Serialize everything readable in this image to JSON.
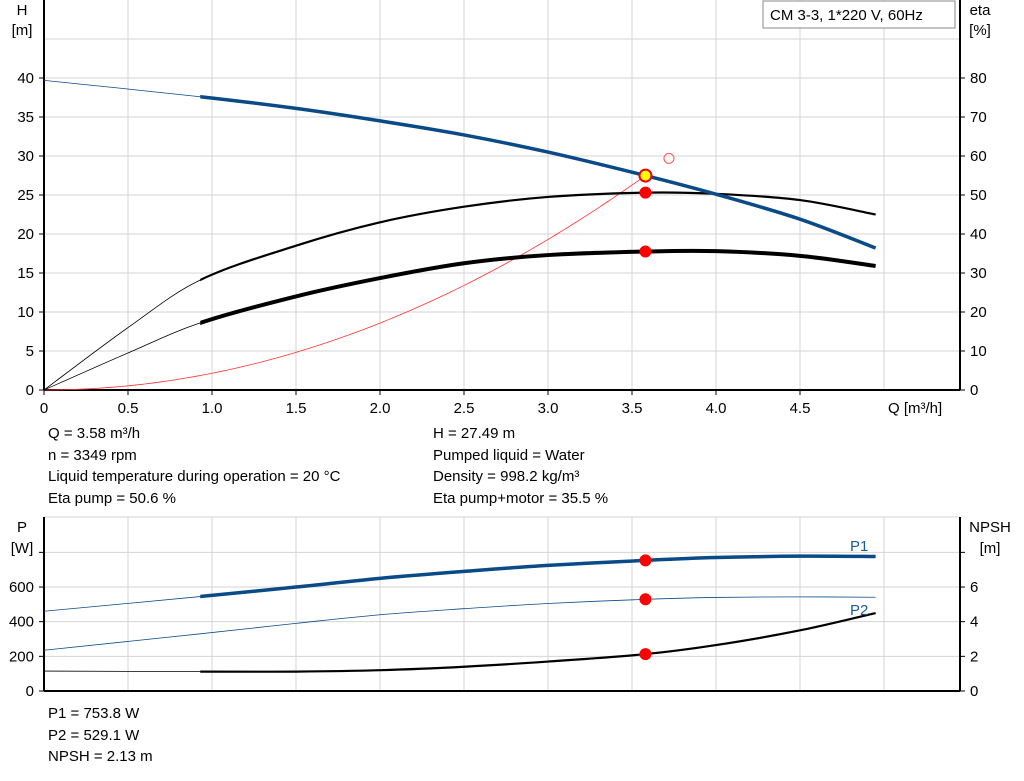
{
  "chart_data": [
    {
      "type": "line",
      "legend_box": "CM 3-3, 1*220 V, 60Hz",
      "xlabel": "Q [m³/h]",
      "ylabel": "H",
      "ylabel_unit": "[m]",
      "y2label": "eta",
      "y2label_unit": "[%]",
      "xlim": [
        0,
        5.45
      ],
      "ylim": [
        0,
        50
      ],
      "y2lim": [
        0,
        100
      ],
      "x_ticks": [
        "0",
        "0.5",
        "1.0",
        "1.5",
        "2.0",
        "2.5",
        "3.0",
        "3.5",
        "4.0",
        "4.5"
      ],
      "y_ticks": [
        "0",
        "5",
        "10",
        "15",
        "20",
        "25",
        "30",
        "35",
        "40"
      ],
      "y2_ticks": [
        "0",
        "10",
        "20",
        "30",
        "40",
        "50",
        "60",
        "70",
        "80"
      ],
      "grid": true,
      "series": [
        {
          "id": "H",
          "axis": "left",
          "color": "#0a4a87",
          "thick_from": 0.93,
          "x": [
            0,
            0.93,
            1.5,
            2.0,
            2.5,
            3.0,
            3.58,
            4.0,
            4.5,
            4.95
          ],
          "y": [
            39.7,
            37.6,
            36.1,
            34.5,
            32.7,
            30.5,
            27.49,
            25.1,
            21.9,
            18.2
          ]
        },
        {
          "id": "eta_pump",
          "axis": "right",
          "color": "#000000",
          "thick_from": 0.93,
          "x": [
            0,
            0.5,
            0.93,
            1.5,
            2.0,
            2.5,
            3.0,
            3.58,
            4.0,
            4.5,
            4.95
          ],
          "y": [
            0,
            16,
            28.2,
            37,
            43,
            47,
            49.5,
            50.6,
            50.3,
            48.7,
            45
          ]
        },
        {
          "id": "eta_pump_motor",
          "axis": "right",
          "color": "#000000",
          "thick_from": 0.93,
          "heavy": true,
          "x": [
            0,
            0.5,
            0.93,
            1.5,
            2.0,
            2.5,
            3.0,
            3.58,
            4.0,
            4.5,
            4.95
          ],
          "y": [
            0,
            9.5,
            17.2,
            24,
            28.7,
            32.5,
            34.6,
            35.5,
            35.6,
            34.4,
            31.8
          ]
        },
        {
          "id": "system_curve",
          "axis": "left",
          "color": "#ff3030",
          "system_k": 2.145,
          "x_max": 3.58
        }
      ],
      "duty_point": {
        "q": 3.58,
        "h": 27.49,
        "eta_pump": 50.6,
        "eta_pump_motor": 35.5
      },
      "open_marker": {
        "q": 3.72,
        "h": 29.7
      }
    },
    {
      "type": "line",
      "ylabel": "P",
      "ylabel_unit": "[W]",
      "y2label": "NPSH",
      "y2label_unit": "[m]",
      "xlim": [
        0,
        5.45
      ],
      "ylim": [
        0,
        1000
      ],
      "y2lim": [
        0,
        10
      ],
      "y_ticks": [
        "0",
        "200",
        "400",
        "600"
      ],
      "y2_ticks": [
        "0",
        "2",
        "4",
        "6"
      ],
      "grid": true,
      "series": [
        {
          "name": "P1",
          "axis": "left",
          "color": "#0a4a87",
          "thick_from": 0.93,
          "x": [
            0,
            0.93,
            1.5,
            2.0,
            2.5,
            3.0,
            3.58,
            4.0,
            4.5,
            4.95
          ],
          "y": [
            460,
            545,
            600,
            650,
            690,
            725,
            753.8,
            770,
            778,
            776
          ]
        },
        {
          "name": "P2",
          "axis": "left",
          "color": "#0a4a87",
          "thick_from": 99,
          "x": [
            0,
            0.93,
            1.5,
            2.0,
            2.5,
            3.0,
            3.58,
            4.0,
            4.5,
            4.95
          ],
          "y": [
            235,
            330,
            390,
            440,
            475,
            505,
            529.1,
            540,
            543,
            541
          ]
        },
        {
          "id": "NPSH",
          "axis": "right",
          "color": "#000000",
          "thick_from": 0.93,
          "x": [
            0,
            0.93,
            1.5,
            2.0,
            2.5,
            3.0,
            3.58,
            4.0,
            4.5,
            4.95
          ],
          "y": [
            1.15,
            1.12,
            1.12,
            1.2,
            1.4,
            1.7,
            2.13,
            2.65,
            3.5,
            4.5
          ]
        }
      ],
      "duty_point": {
        "q": 3.58,
        "p1": 753.8,
        "p2": 529.1,
        "npsh": 2.13
      }
    }
  ],
  "info_top_left": [
    "Q = 3.58 m³/h",
    "n = 3349 rpm",
    "Liquid temperature during operation = 20 °C",
    "Eta pump = 50.6 %"
  ],
  "info_top_right": [
    "H = 27.49 m",
    "Pumped liquid = Water",
    "Density = 998.2 kg/m³",
    "Eta pump+motor = 35.5 %"
  ],
  "info_bottom": [
    "P1 = 753.8 W",
    "P2 = 529.1 W",
    "NPSH = 2.13 m"
  ]
}
